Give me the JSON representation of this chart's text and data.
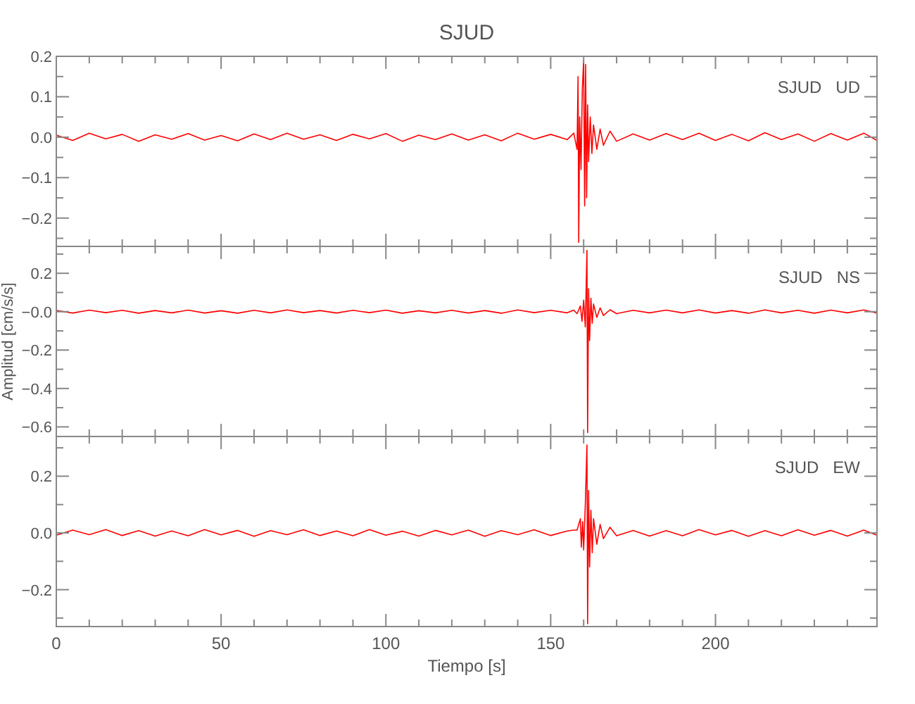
{
  "chart_data": [
    {
      "type": "line",
      "title": "SJUD",
      "annotations": [
        "SJUD   UD"
      ],
      "tick_labels": "y",
      "xlim": [
        0,
        249
      ],
      "ylim": [
        -0.27,
        0.2
      ],
      "xticks": [
        0,
        {
          "value": 10,
          "label": null
        },
        {
          "value": 20,
          "label": null
        },
        {
          "value": 30,
          "label": null
        },
        {
          "value": 40,
          "label": null
        },
        50,
        {
          "value": 60,
          "label": null
        },
        {
          "value": 70,
          "label": null
        },
        {
          "value": 80,
          "label": null
        },
        {
          "value": 90,
          "label": null
        },
        100,
        {
          "value": 110,
          "label": null
        },
        {
          "value": 120,
          "label": null
        },
        {
          "value": 130,
          "label": null
        },
        {
          "value": 140,
          "label": null
        },
        150,
        {
          "value": 160,
          "label": null
        },
        {
          "value": 170,
          "label": null
        },
        {
          "value": 180,
          "label": null
        },
        {
          "value": 190,
          "label": null
        },
        200,
        {
          "value": 210,
          "label": null
        },
        {
          "value": 220,
          "label": null
        },
        {
          "value": 230,
          "label": null
        },
        {
          "value": 240,
          "label": null
        }
      ],
      "yticks": [
        {
          "value": 0.2,
          "label": "0.2"
        },
        {
          "value": 0.15,
          "label": null
        },
        {
          "value": 0.1,
          "label": "0.1"
        },
        {
          "value": 0.05,
          "label": null
        },
        {
          "value": 0,
          "label": "0.0"
        },
        {
          "value": -0.05,
          "label": null
        },
        {
          "value": -0.1,
          "label": "−0.1"
        },
        {
          "value": -0.15,
          "label": null
        },
        {
          "value": -0.2,
          "label": "−0.2"
        },
        {
          "value": -0.25,
          "label": null
        }
      ],
      "x": [
        0,
        5,
        10,
        15,
        20,
        25,
        30,
        35,
        40,
        45,
        50,
        55,
        60,
        65,
        70,
        75,
        80,
        85,
        90,
        95,
        100,
        105,
        110,
        115,
        120,
        125,
        130,
        135,
        140,
        145,
        150,
        155,
        157,
        158,
        158.3,
        158.5,
        158.8,
        159.2,
        159.6,
        160,
        160.3,
        160.6,
        160.9,
        161.2,
        161.5,
        162,
        162.5,
        163,
        164,
        165,
        166,
        168,
        170,
        175,
        180,
        185,
        190,
        195,
        200,
        205,
        210,
        215,
        220,
        225,
        230,
        235,
        240,
        245,
        249
      ],
      "series": [
        {
          "color": "#ff0000",
          "values": [
            0.005,
            -0.008,
            0.01,
            -0.004,
            0.007,
            -0.01,
            0.006,
            -0.005,
            0.009,
            -0.007,
            0.004,
            -0.009,
            0.008,
            -0.006,
            0.01,
            -0.005,
            0.006,
            -0.008,
            0.007,
            -0.004,
            0.009,
            -0.01,
            0.005,
            -0.006,
            0.008,
            -0.007,
            0.006,
            -0.009,
            0.01,
            -0.005,
            0.007,
            -0.006,
            0.01,
            -0.03,
            0.15,
            -0.26,
            0.05,
            -0.08,
            0.12,
            0.19,
            -0.17,
            0.18,
            -0.15,
            0.08,
            -0.06,
            0.05,
            -0.04,
            0.03,
            -0.03,
            0.02,
            -0.02,
            0.015,
            -0.01,
            0.008,
            -0.007,
            0.009,
            -0.006,
            0.01,
            -0.008,
            0.007,
            -0.009,
            0.011,
            -0.006,
            0.008,
            -0.01,
            0.009,
            -0.007,
            0.01,
            -0.008
          ]
        }
      ]
    },
    {
      "type": "line",
      "ylabel": "Amplitud [cm/s/s]",
      "annotations": [
        "SJUD   NS"
      ],
      "tick_labels": "y",
      "xlim": [
        0,
        249
      ],
      "ylim": [
        -0.65,
        0.34
      ],
      "xticks": [
        0,
        {
          "value": 10,
          "label": null
        },
        {
          "value": 20,
          "label": null
        },
        {
          "value": 30,
          "label": null
        },
        {
          "value": 40,
          "label": null
        },
        50,
        {
          "value": 60,
          "label": null
        },
        {
          "value": 70,
          "label": null
        },
        {
          "value": 80,
          "label": null
        },
        {
          "value": 90,
          "label": null
        },
        100,
        {
          "value": 110,
          "label": null
        },
        {
          "value": 120,
          "label": null
        },
        {
          "value": 130,
          "label": null
        },
        {
          "value": 140,
          "label": null
        },
        150,
        {
          "value": 160,
          "label": null
        },
        {
          "value": 170,
          "label": null
        },
        {
          "value": 180,
          "label": null
        },
        {
          "value": 190,
          "label": null
        },
        200,
        {
          "value": 210,
          "label": null
        },
        {
          "value": 220,
          "label": null
        },
        {
          "value": 230,
          "label": null
        },
        {
          "value": 240,
          "label": null
        }
      ],
      "yticks": [
        {
          "value": 0.3,
          "label": null
        },
        {
          "value": 0.2,
          "label": "0.2"
        },
        {
          "value": 0.1,
          "label": null
        },
        {
          "value": 0,
          "label": "−0.0"
        },
        {
          "value": -0.1,
          "label": null
        },
        {
          "value": -0.2,
          "label": "−0.2"
        },
        {
          "value": -0.3,
          "label": null
        },
        {
          "value": -0.4,
          "label": "−0.4"
        },
        {
          "value": -0.5,
          "label": null
        },
        {
          "value": -0.6,
          "label": "−0.6"
        }
      ],
      "x": [
        0,
        5,
        10,
        15,
        20,
        25,
        30,
        35,
        40,
        45,
        50,
        55,
        60,
        65,
        70,
        75,
        80,
        85,
        90,
        95,
        100,
        105,
        110,
        115,
        120,
        125,
        130,
        135,
        140,
        145,
        150,
        155,
        157,
        158,
        159,
        159.5,
        160,
        160.5,
        161,
        161.2,
        161.5,
        161.8,
        162.2,
        162.6,
        163,
        164,
        165,
        166,
        168,
        170,
        175,
        180,
        185,
        190,
        195,
        200,
        205,
        210,
        215,
        220,
        225,
        230,
        235,
        240,
        245,
        249
      ],
      "series": [
        {
          "color": "#ff0000",
          "values": [
            0.006,
            -0.007,
            0.008,
            -0.005,
            0.007,
            -0.008,
            0.006,
            -0.006,
            0.008,
            -0.007,
            0.005,
            -0.008,
            0.007,
            -0.006,
            0.009,
            -0.005,
            0.006,
            -0.007,
            0.007,
            -0.005,
            0.008,
            -0.008,
            0.005,
            -0.006,
            0.007,
            -0.007,
            0.006,
            -0.008,
            0.009,
            -0.005,
            0.007,
            -0.006,
            0.008,
            -0.01,
            0.03,
            -0.05,
            0.06,
            -0.08,
            0.32,
            -0.63,
            0.12,
            -0.15,
            0.07,
            -0.06,
            0.04,
            -0.03,
            0.02,
            -0.02,
            0.01,
            -0.01,
            0.007,
            -0.006,
            0.008,
            -0.006,
            0.009,
            -0.007,
            0.006,
            -0.008,
            0.009,
            -0.006,
            0.007,
            -0.008,
            0.008,
            -0.006,
            0.009,
            -0.007
          ]
        }
      ]
    },
    {
      "type": "line",
      "xlabel": "Tiempo [s]",
      "annotations": [
        "SJUD   EW"
      ],
      "xlim": [
        0,
        249
      ],
      "ylim": [
        -0.33,
        0.34
      ],
      "xticks": [
        {
          "value": 0,
          "label": "0"
        },
        {
          "value": 10,
          "label": null
        },
        {
          "value": 20,
          "label": null
        },
        {
          "value": 30,
          "label": null
        },
        {
          "value": 40,
          "label": null
        },
        {
          "value": 50,
          "label": "50"
        },
        {
          "value": 60,
          "label": null
        },
        {
          "value": 70,
          "label": null
        },
        {
          "value": 80,
          "label": null
        },
        {
          "value": 90,
          "label": null
        },
        {
          "value": 100,
          "label": "100"
        },
        {
          "value": 110,
          "label": null
        },
        {
          "value": 120,
          "label": null
        },
        {
          "value": 130,
          "label": null
        },
        {
          "value": 140,
          "label": null
        },
        {
          "value": 150,
          "label": "150"
        },
        {
          "value": 160,
          "label": null
        },
        {
          "value": 170,
          "label": null
        },
        {
          "value": 180,
          "label": null
        },
        {
          "value": 190,
          "label": null
        },
        {
          "value": 200,
          "label": "200"
        },
        {
          "value": 210,
          "label": null
        },
        {
          "value": 220,
          "label": null
        },
        {
          "value": 230,
          "label": null
        },
        {
          "value": 240,
          "label": null
        }
      ],
      "yticks": [
        {
          "value": 0.3,
          "label": null
        },
        {
          "value": 0.2,
          "label": "0.2"
        },
        {
          "value": 0.1,
          "label": null
        },
        {
          "value": 0,
          "label": "0.0"
        },
        {
          "value": -0.1,
          "label": null
        },
        {
          "value": -0.2,
          "label": "−0.2"
        },
        {
          "value": -0.3,
          "label": null
        }
      ],
      "x": [
        0,
        5,
        10,
        15,
        20,
        25,
        30,
        35,
        40,
        45,
        50,
        55,
        60,
        65,
        70,
        75,
        80,
        85,
        90,
        95,
        100,
        105,
        110,
        115,
        120,
        125,
        130,
        135,
        140,
        145,
        150,
        155,
        157,
        158,
        159,
        159.3,
        159.7,
        160,
        160.5,
        161,
        161.2,
        161.5,
        161.8,
        162.2,
        162.6,
        163,
        164,
        165,
        166,
        168,
        170,
        175,
        180,
        185,
        190,
        195,
        200,
        205,
        210,
        215,
        220,
        225,
        230,
        235,
        240,
        245,
        249
      ],
      "series": [
        {
          "color": "#ff0000",
          "values": [
            -0.008,
            0.01,
            -0.006,
            0.012,
            -0.009,
            0.008,
            -0.011,
            0.007,
            -0.01,
            0.012,
            -0.007,
            0.009,
            -0.012,
            0.008,
            -0.006,
            0.011,
            -0.009,
            0.007,
            -0.01,
            0.012,
            -0.008,
            0.006,
            -0.011,
            0.009,
            -0.007,
            0.01,
            -0.012,
            0.008,
            -0.006,
            0.011,
            -0.009,
            0.007,
            0.01,
            0.01,
            0.05,
            -0.05,
            0.04,
            -0.06,
            0.1,
            0.31,
            -0.32,
            0.15,
            -0.12,
            0.08,
            -0.07,
            0.05,
            -0.04,
            0.03,
            -0.02,
            0.02,
            -0.01,
            0.009,
            -0.011,
            0.008,
            -0.01,
            0.012,
            -0.007,
            0.009,
            -0.012,
            0.008,
            -0.01,
            0.011,
            -0.008,
            0.009,
            -0.011,
            0.01,
            -0.008
          ]
        }
      ]
    }
  ]
}
